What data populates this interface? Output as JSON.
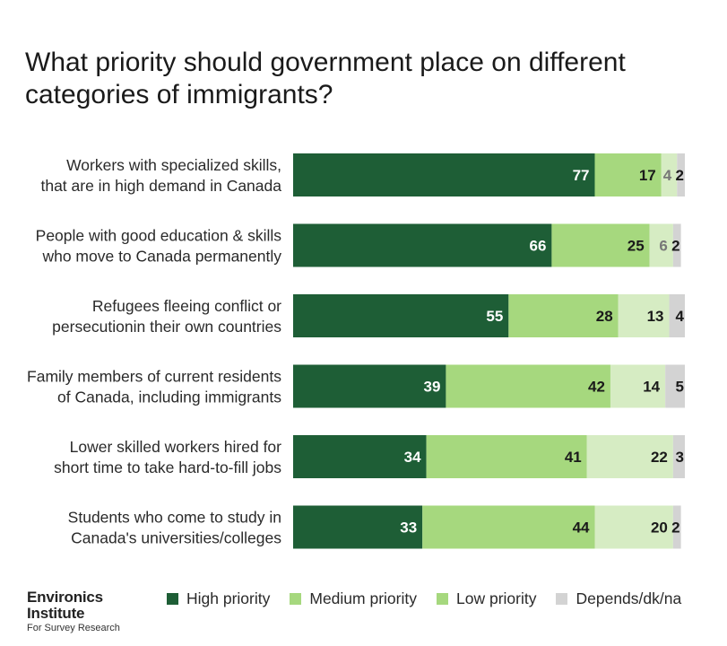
{
  "title": "What priority should government place on different categories of immigrants?",
  "colors": {
    "high": "#1e5e36",
    "medium": "#a6d87e",
    "low": "#d6ecc3",
    "depends": "#d3d3d3",
    "label_light": "#ffffff",
    "label_dark": "#1a1a1a",
    "label_muted": "#777777"
  },
  "chart_data": {
    "type": "bar",
    "orientation": "horizontal",
    "stacked": true,
    "categories": [
      [
        "Workers with specialized skills,",
        "that are in high demand in Canada"
      ],
      [
        "People with good education & skills",
        "who move to Canada permanently"
      ],
      [
        "Refugees fleeing conflict or",
        "persecutionin their own countries"
      ],
      [
        "Family members of current residents",
        "of Canada, including immigrants"
      ],
      [
        "Lower skilled workers hired for",
        "short time to take hard-to-fill jobs"
      ],
      [
        "Students who come to study in",
        "Canada's universities/colleges"
      ]
    ],
    "series": [
      {
        "name": "High priority",
        "values": [
          77,
          66,
          55,
          39,
          34,
          33
        ]
      },
      {
        "name": "Medium priority",
        "values": [
          17,
          25,
          28,
          42,
          41,
          44
        ]
      },
      {
        "name": "Low priority",
        "values": [
          4,
          6,
          13,
          14,
          22,
          20
        ]
      },
      {
        "name": "Depends/dk/na",
        "values": [
          2,
          2,
          4,
          5,
          3,
          2
        ]
      }
    ],
    "xlim": [
      0,
      100
    ],
    "legend_position": "bottom"
  },
  "legend": [
    {
      "label": "High priority",
      "color_key": "high"
    },
    {
      "label": "Medium priority",
      "color_key": "medium"
    },
    {
      "label": "Low priority",
      "color_key": "medium"
    },
    {
      "label": "Depends/dk/na",
      "color_key": "depends"
    }
  ],
  "logo": {
    "line1": "Environics",
    "line2": "Institute",
    "line3": "For Survey Research"
  }
}
